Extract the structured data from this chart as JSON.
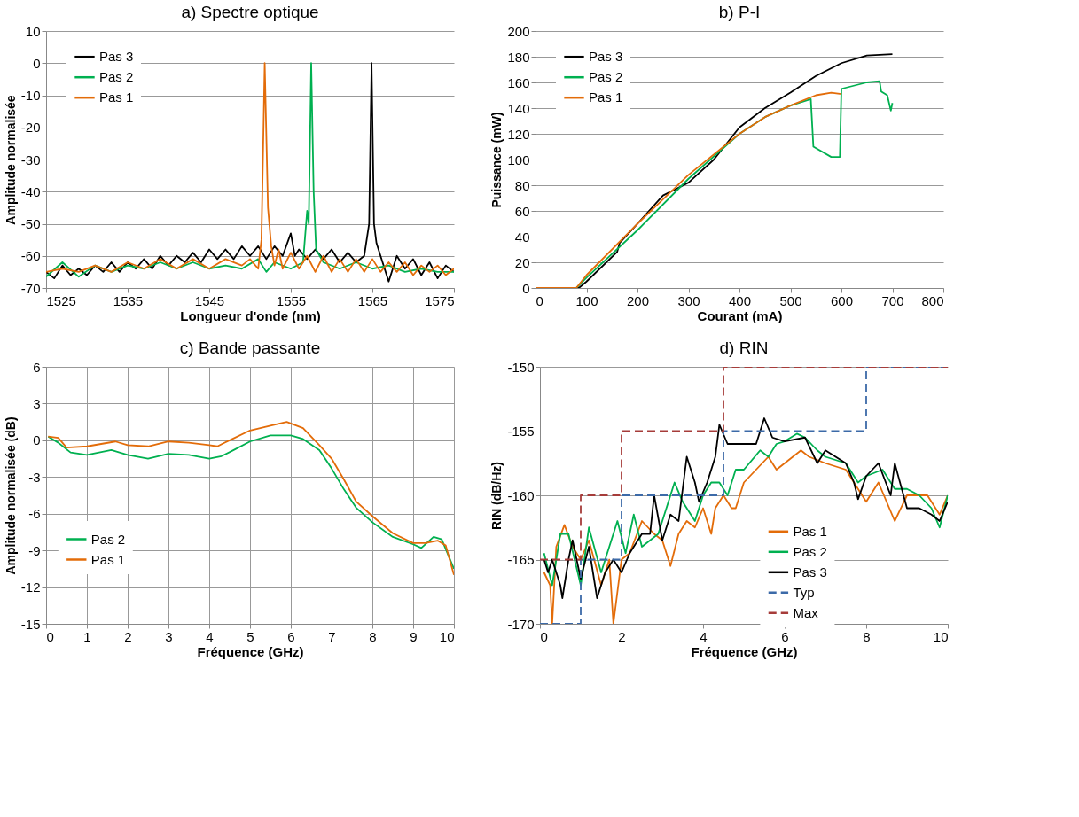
{
  "chart_data": [
    {
      "type": "line",
      "title": "a) Spectre optique",
      "xlabel": "Longueur d'onde (nm)",
      "ylabel": "Amplitude normalisée",
      "xlim": [
        1525,
        1575
      ],
      "xticks": [
        1525,
        1535,
        1545,
        1555,
        1565,
        1575
      ],
      "ylim": [
        -70,
        10
      ],
      "yticks": [
        -70,
        -60,
        -50,
        -40,
        -30,
        -20,
        -10,
        0,
        10
      ],
      "grid": "y",
      "legend": "top left",
      "series": [
        {
          "name": "Pas 3",
          "color": "#000000",
          "x": [
            1525,
            1526,
            1527,
            1528,
            1529,
            1530,
            1531,
            1532,
            1533,
            1534,
            1535,
            1536,
            1537,
            1538,
            1539,
            1540,
            1541,
            1542,
            1543,
            1544,
            1545,
            1546,
            1547,
            1548,
            1549,
            1550,
            1551,
            1552,
            1553,
            1554,
            1555,
            1555.5,
            1556,
            1557,
            1558,
            1559,
            1560,
            1561,
            1562,
            1563,
            1564,
            1564.6,
            1564.9,
            1565.2,
            1565.5,
            1566,
            1567,
            1568,
            1569,
            1570,
            1571,
            1572,
            1573,
            1574,
            1575
          ],
          "values": [
            -65,
            -67,
            -63,
            -66,
            -64,
            -66,
            -63,
            -65,
            -62,
            -65,
            -62,
            -64,
            -61,
            -64,
            -60,
            -63,
            -60,
            -62,
            -59,
            -62,
            -58,
            -61,
            -58,
            -61,
            -57,
            -60,
            -57,
            -61,
            -57,
            -60,
            -53,
            -60,
            -58,
            -61,
            -58,
            -61,
            -58,
            -62,
            -59,
            -62,
            -60,
            -50,
            0,
            -50,
            -56,
            -60,
            -68,
            -60,
            -64,
            -61,
            -66,
            -62,
            -67,
            -63,
            -65
          ]
        },
        {
          "name": "Pas 2",
          "color": "#00b050",
          "x": [
            1525,
            1527,
            1529,
            1531,
            1533,
            1535,
            1537,
            1539,
            1541,
            1543,
            1545,
            1547,
            1549,
            1551,
            1552,
            1553,
            1555,
            1556.5,
            1557,
            1557.2,
            1557.5,
            1557.8,
            1558.1,
            1559,
            1561,
            1563,
            1565,
            1567,
            1569,
            1571,
            1573,
            1575
          ],
          "values": [
            -66.5,
            -62,
            -66.5,
            -63,
            -65,
            -63,
            -64,
            -62,
            -64,
            -62,
            -64,
            -63,
            -64,
            -61,
            -65,
            -62,
            -64,
            -62,
            -46,
            -50,
            0,
            -40,
            -58,
            -62,
            -64,
            -62,
            -64,
            -63,
            -65,
            -64,
            -65,
            -65
          ]
        },
        {
          "name": "Pas 1",
          "color": "#e36c09",
          "x": [
            1525,
            1527,
            1529,
            1531,
            1533,
            1535,
            1537,
            1539,
            1541,
            1543,
            1545,
            1547,
            1549,
            1550,
            1551,
            1551.4,
            1551.8,
            1552.2,
            1552.6,
            1553,
            1553.5,
            1554,
            1555,
            1556,
            1557,
            1558,
            1559,
            1560,
            1561,
            1562,
            1563,
            1564,
            1565,
            1566,
            1567,
            1568,
            1569,
            1570,
            1571,
            1572,
            1573,
            1574,
            1575
          ],
          "values": [
            -65,
            -64,
            -65,
            -63,
            -65,
            -62,
            -64,
            -61,
            -64,
            -61,
            -64,
            -61,
            -63,
            -61,
            -64,
            -55,
            0,
            -45,
            -57,
            -63,
            -58,
            -64,
            -59,
            -64,
            -60,
            -65,
            -60,
            -65,
            -61,
            -65,
            -61,
            -65,
            -61,
            -65,
            -62,
            -65,
            -62,
            -66,
            -63,
            -65,
            -63,
            -66,
            -64
          ]
        }
      ]
    },
    {
      "type": "line",
      "title": "b) P-I",
      "xlabel": "Courant (mA)",
      "ylabel": "Puissance (mW)",
      "xlim": [
        0,
        800
      ],
      "xticks": [
        0,
        100,
        200,
        300,
        400,
        500,
        600,
        700,
        800
      ],
      "ylim": [
        0,
        200
      ],
      "yticks": [
        0,
        20,
        40,
        60,
        80,
        100,
        120,
        140,
        160,
        180,
        200
      ],
      "grid": "y",
      "legend": "top left",
      "series": [
        {
          "name": "Pas 3",
          "color": "#000000",
          "x": [
            0,
            85,
            100,
            160,
            165,
            200,
            250,
            300,
            350,
            380,
            400,
            450,
            500,
            550,
            600,
            650,
            700
          ],
          "values": [
            0,
            0,
            5,
            28,
            35,
            50,
            72,
            82,
            100,
            115,
            125,
            140,
            152,
            165,
            175,
            181,
            182
          ]
        },
        {
          "name": "Pas 2",
          "color": "#00b050",
          "x": [
            0,
            80,
            100,
            200,
            300,
            400,
            450,
            500,
            540,
            545,
            580,
            597,
            600,
            650,
            675,
            678,
            690,
            697,
            700
          ],
          "values": [
            0,
            0,
            8,
            45,
            85,
            120,
            133,
            142,
            147,
            110,
            102,
            102,
            155,
            160,
            161,
            153,
            150,
            138,
            144
          ]
        },
        {
          "name": "Pas 1",
          "color": "#e36c09",
          "x": [
            0,
            80,
            100,
            200,
            300,
            400,
            450,
            500,
            550,
            580,
            600
          ],
          "values": [
            0,
            0,
            10,
            50,
            88,
            120,
            133,
            142,
            150,
            152,
            151
          ]
        }
      ]
    },
    {
      "type": "line",
      "title": "c) Bande passante",
      "xlabel": "Fréquence (GHz)",
      "ylabel": "Amplitude normalisée (dB)",
      "xlim": [
        0,
        10
      ],
      "xticks": [
        0,
        1,
        2,
        3,
        4,
        5,
        6,
        7,
        8,
        9,
        10
      ],
      "ylim": [
        -15,
        6
      ],
      "yticks": [
        -15,
        -12,
        -9,
        -6,
        -3,
        0,
        3,
        6
      ],
      "grid": true,
      "legend": "left",
      "series": [
        {
          "name": "Pas 2",
          "color": "#00b050",
          "x": [
            0.05,
            0.3,
            0.6,
            1,
            1.6,
            2,
            2.5,
            3,
            3.5,
            4,
            4.3,
            4.6,
            5,
            5.5,
            6,
            6.3,
            6.7,
            7,
            7.3,
            7.6,
            8,
            8.5,
            9,
            9.2,
            9.5,
            9.7,
            10
          ],
          "values": [
            0.3,
            -0.2,
            -1,
            -1.2,
            -0.8,
            -1.2,
            -1.5,
            -1.1,
            -1.2,
            -1.5,
            -1.3,
            -0.8,
            -0.1,
            0.4,
            0.4,
            0.1,
            -0.8,
            -2.3,
            -4,
            -5.5,
            -6.7,
            -7.9,
            -8.5,
            -8.8,
            -7.9,
            -8.1,
            -10.5
          ]
        },
        {
          "name": "Pas 1",
          "color": "#e36c09",
          "x": [
            0.05,
            0.3,
            0.5,
            1,
            1.7,
            2,
            2.5,
            3,
            3.5,
            4,
            4.2,
            4.5,
            5,
            5.5,
            5.9,
            6.3,
            6.7,
            7,
            7.3,
            7.6,
            8,
            8.5,
            9,
            9.3,
            9.6,
            9.8,
            10
          ],
          "values": [
            0.3,
            0.2,
            -0.6,
            -0.5,
            -0.1,
            -0.4,
            -0.5,
            -0.1,
            -0.2,
            -0.4,
            -0.5,
            0,
            0.8,
            1.2,
            1.5,
            1.0,
            -0.4,
            -1.5,
            -3.2,
            -5,
            -6.2,
            -7.6,
            -8.4,
            -8.4,
            -8.2,
            -8.6,
            -11
          ]
        }
      ]
    },
    {
      "type": "line",
      "title": "d) RIN",
      "xlabel": "Fréquence (GHz)",
      "ylabel": "RIN (dB/Hz)",
      "xlim": [
        0,
        10
      ],
      "xticks": [
        0,
        2,
        4,
        6,
        8,
        10
      ],
      "ylim": [
        -170,
        -150
      ],
      "yticks": [
        -170,
        -165,
        -160,
        -155,
        -150
      ],
      "grid": "y",
      "legend": "bottom right",
      "series": [
        {
          "name": "Pas 1",
          "color": "#e36c09",
          "x": [
            0.1,
            0.25,
            0.3,
            0.4,
            0.6,
            0.8,
            1,
            1.2,
            1.5,
            1.7,
            1.8,
            2,
            2.2,
            2.5,
            2.8,
            3,
            3.2,
            3.4,
            3.6,
            3.8,
            4,
            4.2,
            4.3,
            4.5,
            4.7,
            4.8,
            5,
            5.3,
            5.6,
            5.8,
            6.2,
            6.4,
            6.6,
            7,
            7.5,
            7.7,
            8,
            8.3,
            8.7,
            9,
            9.3,
            9.5,
            9.8,
            10
          ],
          "values": [
            -166,
            -167,
            -170,
            -164,
            -162.3,
            -164,
            -165,
            -163.5,
            -167,
            -165,
            -170,
            -165,
            -164.5,
            -162,
            -163,
            -163.5,
            -165.5,
            -163,
            -162,
            -162.5,
            -161,
            -163,
            -161,
            -160,
            -161,
            -161,
            -159,
            -158,
            -157,
            -158,
            -157,
            -156.5,
            -157,
            -157.5,
            -158,
            -159,
            -160.5,
            -159,
            -162,
            -160,
            -160,
            -160,
            -161.5,
            -160
          ]
        },
        {
          "name": "Pas 2",
          "color": "#00b050",
          "x": [
            0.1,
            0.3,
            0.5,
            0.7,
            1,
            1.2,
            1.5,
            1.7,
            1.9,
            2.1,
            2.3,
            2.5,
            2.9,
            3.2,
            3.3,
            3.5,
            3.8,
            4,
            4.2,
            4.4,
            4.6,
            4.8,
            5,
            5.4,
            5.6,
            5.8,
            6,
            6.3,
            6.5,
            6.8,
            7,
            7.5,
            7.8,
            8,
            8.4,
            8.7,
            9,
            9.3,
            9.6,
            9.8,
            10
          ],
          "values": [
            -164.5,
            -167,
            -163,
            -163,
            -167,
            -162.5,
            -166,
            -164,
            -162,
            -164.5,
            -161.5,
            -164,
            -163,
            -160,
            -159,
            -160.5,
            -162,
            -160,
            -159,
            -159,
            -160,
            -158,
            -158,
            -156.5,
            -157,
            -156,
            -155.8,
            -155.2,
            -155.5,
            -156.5,
            -157,
            -157.5,
            -159,
            -158.5,
            -158,
            -159.5,
            -159.5,
            -160,
            -161,
            -162.5,
            -160
          ]
        },
        {
          "name": "Pas 3",
          "color": "#000000",
          "x": [
            0.1,
            0.2,
            0.3,
            0.5,
            0.55,
            0.7,
            0.8,
            1,
            1.2,
            1.4,
            1.6,
            1.8,
            2,
            2.2,
            2.5,
            2.7,
            2.8,
            3,
            3.2,
            3.4,
            3.6,
            3.8,
            3.9,
            4.1,
            4.3,
            4.4,
            4.6,
            4.9,
            5.3,
            5.5,
            5.7,
            6,
            6.5,
            6.8,
            7,
            7.5,
            7.7,
            7.8,
            8,
            8.3,
            8.6,
            8.7,
            9,
            9.3,
            9.6,
            9.8,
            10
          ],
          "values": [
            -165,
            -166,
            -165,
            -167,
            -168,
            -165,
            -163.5,
            -166.5,
            -164,
            -168,
            -166,
            -165,
            -166,
            -164.5,
            -163,
            -163,
            -160,
            -163.5,
            -161.5,
            -162,
            -157,
            -159,
            -160.5,
            -159,
            -157,
            -154.5,
            -156,
            -156,
            -156,
            -154,
            -155.5,
            -155.8,
            -155.5,
            -157.5,
            -156.5,
            -157.5,
            -159,
            -160.3,
            -158.5,
            -157.5,
            -160,
            -157.5,
            -161,
            -161,
            -161.5,
            -162,
            -160.5
          ]
        },
        {
          "name": "Typ",
          "color": "#3c6aa8",
          "line_style": "dashed",
          "x": [
            0,
            1,
            1,
            2,
            2,
            4.5,
            4.5,
            8,
            8,
            10
          ],
          "values": [
            -170,
            -170,
            -165,
            -165,
            -160,
            -160,
            -155,
            -155,
            -150,
            -150
          ]
        },
        {
          "name": "Max",
          "color": "#a63c3a",
          "line_style": "dashed",
          "x": [
            0,
            1,
            1,
            2,
            2,
            4.5,
            4.5,
            10
          ],
          "values": [
            -165,
            -165,
            -160,
            -160,
            -155,
            -155,
            -150,
            -150
          ]
        }
      ]
    }
  ]
}
